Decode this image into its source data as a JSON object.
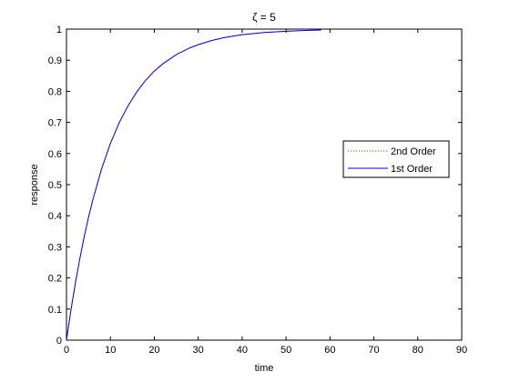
{
  "chart_data": {
    "type": "line",
    "title": "ζ = 5",
    "xlabel": "time",
    "ylabel": "response",
    "xlim": [
      0,
      90
    ],
    "ylim": [
      0,
      1
    ],
    "xticks": [
      0,
      10,
      20,
      30,
      40,
      50,
      60,
      70,
      80,
      90
    ],
    "yticks": [
      0,
      0.1,
      0.2,
      0.3,
      0.4,
      0.5,
      0.6,
      0.7,
      0.8,
      0.9,
      1
    ],
    "xtick_labels": [
      "0",
      "10",
      "20",
      "30",
      "40",
      "50",
      "60",
      "70",
      "80",
      "90"
    ],
    "ytick_labels": [
      "0",
      "0.1",
      "0.2",
      "0.3",
      "0.4",
      "0.5",
      "0.6",
      "0.7",
      "0.8",
      "0.9",
      "1"
    ],
    "grid": false,
    "legend_position": "right",
    "series": [
      {
        "name": "2nd Order",
        "style": "dotted",
        "color": "#ff0000",
        "x": [
          0,
          1,
          2,
          3,
          4,
          5,
          6,
          8,
          10,
          12,
          14,
          16,
          18,
          20,
          22,
          25,
          28,
          30,
          33,
          36,
          40,
          45,
          50,
          55,
          58
        ],
        "y": [
          0,
          0.095,
          0.181,
          0.259,
          0.33,
          0.394,
          0.451,
          0.551,
          0.632,
          0.699,
          0.753,
          0.798,
          0.835,
          0.865,
          0.889,
          0.918,
          0.939,
          0.95,
          0.963,
          0.973,
          0.982,
          0.989,
          0.993,
          0.996,
          0.997
        ]
      },
      {
        "name": "1st Order",
        "style": "solid",
        "color": "#0000ff",
        "x": [
          0,
          1,
          2,
          3,
          4,
          5,
          6,
          8,
          10,
          12,
          14,
          16,
          18,
          20,
          22,
          25,
          28,
          30,
          33,
          36,
          40,
          45,
          50,
          55,
          58
        ],
        "y": [
          0,
          0.095,
          0.181,
          0.259,
          0.33,
          0.394,
          0.451,
          0.551,
          0.632,
          0.699,
          0.753,
          0.798,
          0.835,
          0.865,
          0.889,
          0.918,
          0.939,
          0.95,
          0.963,
          0.973,
          0.982,
          0.989,
          0.993,
          0.996,
          0.997
        ]
      }
    ]
  }
}
